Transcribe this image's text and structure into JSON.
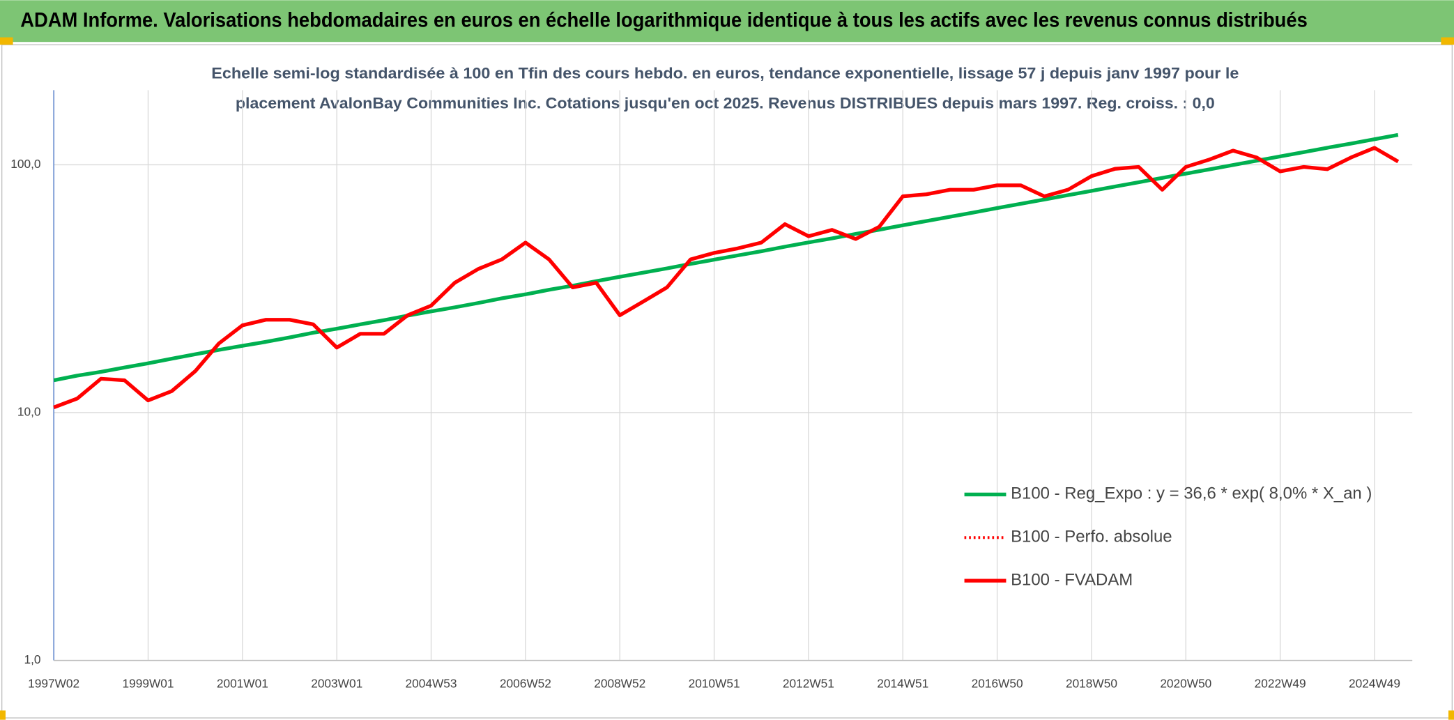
{
  "header": {
    "title": "ADAM Informe. Valorisations hebdomadaires en euros en échelle logarithmique identique à tous les actifs avec les revenus connus distribués"
  },
  "chart_data": {
    "type": "line",
    "subtitle": [
      "Echelle semi-log standardisée à 100 en Tfin des cours hebdo. en euros, tendance exponentielle, lissage 57 j depuis janv 1997 pour le",
      "placement AvalonBay Communities Inc. Cotations jusqu'en oct 2025. Revenus DISTRIBUES depuis mars 1997. Reg. croiss. : 0,0"
    ],
    "log_scale": true,
    "grid": true,
    "ylim": [
      1,
      200
    ],
    "yticks": [
      {
        "value": 1,
        "label": "1,0"
      },
      {
        "value": 10,
        "label": "10,0"
      },
      {
        "value": 100,
        "label": "100,0"
      }
    ],
    "categories": [
      "1997W02",
      null,
      null,
      null,
      "1999W01",
      null,
      null,
      null,
      "2001W01",
      null,
      null,
      null,
      "2003W01",
      null,
      null,
      null,
      "2004W53",
      null,
      null,
      null,
      "2006W52",
      null,
      null,
      null,
      "2008W52",
      null,
      null,
      null,
      "2010W51",
      null,
      null,
      null,
      "2012W51",
      null,
      null,
      null,
      "2014W51",
      null,
      null,
      null,
      "2016W50",
      null,
      null,
      null,
      "2018W50",
      null,
      null,
      null,
      "2020W50",
      null,
      null,
      null,
      "2022W49",
      null,
      null,
      null,
      "2024W49",
      null
    ],
    "series": [
      {
        "name": "B100 - Reg_Expo : y = 36,6 * exp( 8,0% *  X_an )",
        "color": "#00b050",
        "style": "solid",
        "values": [
          13.5,
          14.1,
          14.6,
          15.2,
          15.8,
          16.5,
          17.2,
          17.9,
          18.6,
          19.3,
          20.1,
          21.0,
          21.8,
          22.7,
          23.6,
          24.6,
          25.6,
          26.6,
          27.7,
          28.9,
          30.0,
          31.3,
          32.5,
          33.9,
          35.3,
          36.7,
          38.2,
          39.8,
          41.4,
          43.1,
          44.8,
          46.7,
          48.6,
          50.5,
          52.6,
          54.7,
          57.0,
          59.3,
          61.7,
          64.2,
          66.9,
          69.6,
          72.4,
          75.4,
          78.5,
          81.7,
          85.0,
          88.5,
          92.1,
          95.8,
          99.8,
          103.8,
          108.1,
          112.5,
          117.1,
          121.8,
          126.8,
          132.0
        ]
      },
      {
        "name": "B100 - Perfo. absolue",
        "color": "#ff0000",
        "style": "dotted",
        "values": [
          10.5,
          11.4,
          13.7,
          13.5,
          11.2,
          12.2,
          14.7,
          19,
          22.5,
          23.7,
          23.7,
          22.7,
          18.3,
          20.8,
          20.8,
          24.7,
          27,
          33.4,
          38,
          41.5,
          48.5,
          41.5,
          32,
          33.4,
          24.7,
          28.1,
          32,
          41.5,
          44.1,
          46,
          48.5,
          57.6,
          51.5,
          54.6,
          50.2,
          56.2,
          74.6,
          76,
          79.3,
          79.3,
          82.6,
          82.6,
          74.6,
          79.3,
          90,
          96.3,
          98,
          79.3,
          98,
          105,
          114,
          107,
          94,
          98,
          96,
          107,
          117,
          103
        ]
      },
      {
        "name": "B100 - FVADAM",
        "color": "#ff0000",
        "style": "solid",
        "values": [
          10.5,
          11.4,
          13.7,
          13.5,
          11.2,
          12.2,
          14.7,
          19,
          22.5,
          23.7,
          23.7,
          22.7,
          18.3,
          20.8,
          20.8,
          24.7,
          27,
          33.4,
          38,
          41.5,
          48.5,
          41.5,
          32,
          33.4,
          24.7,
          28.1,
          32,
          41.5,
          44.1,
          46,
          48.5,
          57.6,
          51.5,
          54.6,
          50.2,
          56.2,
          74.6,
          76,
          79.3,
          79.3,
          82.6,
          82.6,
          74.6,
          79.3,
          90,
          96.3,
          98,
          79.3,
          98,
          105,
          114,
          107,
          94,
          98,
          96,
          107,
          117,
          103
        ]
      }
    ]
  }
}
